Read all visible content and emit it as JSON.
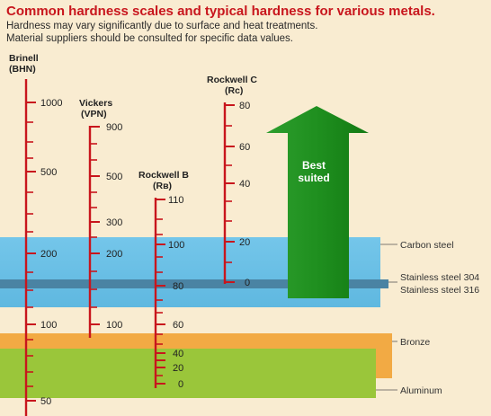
{
  "title": "Common hardness scales and typical hardness for various metals.",
  "subtitle_lines": [
    "Hardness may vary significantly due to surface and heat treatments.",
    "Material suppliers should be consulted for specific data values."
  ],
  "best_suited": [
    "Best",
    "suited"
  ],
  "scales": {
    "brinell": {
      "title": [
        "Brinell",
        "(BHN)"
      ],
      "ticks": [
        "1000",
        "500",
        "200",
        "100",
        "50"
      ]
    },
    "vickers": {
      "title": [
        "Vickers",
        "(VPN)"
      ],
      "ticks": [
        "900",
        "500",
        "300",
        "200",
        "100"
      ]
    },
    "rockwell_b": {
      "title": [
        "Rockwell B",
        "(Rʙ)"
      ],
      "ticks": [
        "110",
        "100",
        "80",
        "60",
        "40",
        "20",
        "0"
      ]
    },
    "rockwell_c": {
      "title": [
        "Rockwell C",
        "(Rc)"
      ],
      "ticks": [
        "80",
        "60",
        "40",
        "20",
        "0"
      ]
    }
  },
  "materials": {
    "carbon_steel": "Carbon steel",
    "stainless_304": "Stainless steel 304",
    "stainless_316": "Stainless steel 316",
    "bronze": "Bronze",
    "aluminum": "Aluminum"
  },
  "colors": {
    "title": "#c8161d",
    "scale_lines": "#c8161d",
    "background": "#f9ecd1",
    "carbon_steel_band": "#6ec0e6",
    "stainless_steel_band": "#4a83a3",
    "bronze_band": "#f2aa44",
    "aluminum_band": "#9ac63a",
    "best_suited_arrow": "#1f8f1f"
  }
}
